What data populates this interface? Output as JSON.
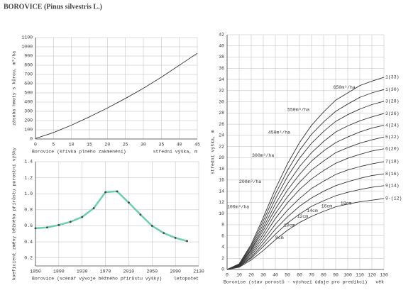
{
  "title": "BOROVICE (Pinus silvestris L.)",
  "chart_data": [
    {
      "type": "line",
      "ylabel": "zásoba hmoty s kůrou, m³/ha",
      "xlabel_left": "Borovice  (křivka plného zakmenění)",
      "xlabel": "střední výška, m",
      "x": [
        0,
        5,
        10,
        15,
        20,
        25,
        30,
        35,
        40,
        45
      ],
      "series": [
        {
          "color": "#333333",
          "values": [
            5,
            70,
            150,
            240,
            335,
            440,
            550,
            670,
            800,
            930
          ]
        }
      ],
      "xlim": [
        0,
        45
      ],
      "xticks": [
        0,
        5,
        10,
        15,
        20,
        25,
        30,
        35,
        40,
        45
      ],
      "ylim": [
        0,
        1100
      ],
      "yticks": [
        0,
        100,
        200,
        300,
        400,
        500,
        600,
        700,
        800,
        900,
        1000,
        1100
      ],
      "grid": true
    },
    {
      "type": "line",
      "ylabel": "koeficient změny běžného přírůstu porostní výšky",
      "xlabel_left": "Borovice  (scénář vývoje běžného přírůstu výšky)",
      "xlabel": "letopočet",
      "x": [
        1850,
        1870,
        1890,
        1910,
        1930,
        1950,
        1970,
        1990,
        2010,
        2030,
        2050,
        2070,
        2090,
        2110
      ],
      "series": [
        {
          "color": "#3bbf9a",
          "values": [
            0.57,
            0.58,
            0.61,
            0.65,
            0.71,
            0.82,
            1.02,
            1.03,
            0.89,
            0.74,
            0.6,
            0.51,
            0.45,
            0.41
          ]
        }
      ],
      "markers": true,
      "xlim": [
        1850,
        2130
      ],
      "xticks": [
        1850,
        1890,
        1930,
        1970,
        2010,
        2050,
        2090,
        2130
      ],
      "ylim": [
        0.1,
        1.4
      ],
      "yticks": [
        0.2,
        0.4,
        0.6,
        0.8,
        {
          "value": 1,
          "label": "1.0"
        },
        1.2,
        1.4
      ],
      "grid": true
    },
    {
      "type": "line",
      "ylabel": "střední výška, m",
      "xlabel_left": "Borovice  (stav porostů - výchozí údaje pro predikci)",
      "xlabel": "věk",
      "x": [
        0,
        10,
        20,
        30,
        40,
        50,
        60,
        70,
        80,
        90,
        100,
        110,
        120,
        130
      ],
      "series": [
        {
          "name": "1(33)",
          "color": "#333333",
          "values": [
            0,
            1.0,
            4.5,
            9.3,
            14.4,
            18.9,
            22.7,
            25.8,
            28.2,
            30.3,
            31.6,
            32.9,
            33.7,
            34.4
          ]
        },
        {
          "name": "1(30)",
          "color": "#333333",
          "values": [
            0,
            1.0,
            4.2,
            8.7,
            13.5,
            17.7,
            21.3,
            24.2,
            26.4,
            28.3,
            29.6,
            30.8,
            31.6,
            32.2
          ]
        },
        {
          "name": "3(28)",
          "color": "#333333",
          "values": [
            0,
            0.9,
            3.9,
            8.1,
            12.6,
            16.6,
            19.9,
            22.6,
            24.7,
            26.5,
            27.7,
            28.7,
            29.5,
            30.1
          ]
        },
        {
          "name": "3(26)",
          "color": "#333333",
          "values": [
            0,
            0.8,
            3.6,
            7.5,
            11.7,
            15.3,
            18.4,
            20.9,
            22.9,
            24.6,
            25.7,
            26.6,
            27.3,
            27.9
          ]
        },
        {
          "name": "4(24)",
          "color": "#333333",
          "values": [
            0,
            0.8,
            3.4,
            7.0,
            10.8,
            14.2,
            17.0,
            19.4,
            21.2,
            22.7,
            23.7,
            24.6,
            25.3,
            25.8
          ]
        },
        {
          "name": "5(22)",
          "color": "#333333",
          "values": [
            0,
            0.7,
            3.1,
            6.4,
            10.0,
            13.0,
            15.6,
            17.8,
            19.4,
            20.9,
            21.8,
            22.6,
            23.2,
            23.7
          ]
        },
        {
          "name": "6(20)",
          "color": "#333333",
          "values": [
            0,
            0.6,
            2.8,
            5.8,
            9.1,
            11.9,
            14.3,
            16.2,
            17.7,
            19.0,
            19.9,
            20.6,
            21.2,
            21.6
          ]
        },
        {
          "name": "7(18)",
          "color": "#333333",
          "values": [
            0,
            0.6,
            2.5,
            5.2,
            8.1,
            10.6,
            12.7,
            14.5,
            15.8,
            17.0,
            17.8,
            18.4,
            18.9,
            19.3
          ]
        },
        {
          "name": "8(16)",
          "color": "#333333",
          "values": [
            0,
            0.5,
            2.2,
            4.6,
            7.2,
            9.4,
            11.3,
            12.8,
            14.0,
            15.0,
            15.7,
            16.3,
            16.8,
            17.1
          ]
        },
        {
          "name": "9(14)",
          "color": "#333333",
          "values": [
            0,
            0.5,
            2.0,
            4.1,
            6.3,
            8.3,
            9.9,
            11.3,
            12.3,
            13.2,
            13.8,
            14.3,
            14.7,
            15.0
          ]
        },
        {
          "name": "9-(12)",
          "color": "#333333",
          "values": [
            0,
            0.4,
            1.7,
            3.4,
            5.3,
            7.0,
            8.4,
            9.5,
            10.4,
            11.2,
            11.7,
            12.1,
            12.4,
            12.7
          ]
        }
      ],
      "annotations": [
        "650m³/ha",
        "550m³/ha",
        "450m³/ha",
        "300m³/ha",
        "200m³/ha",
        "100m³/ha",
        "18cm",
        "16cm",
        "14cm",
        "12cm",
        "10cm",
        "8cm"
      ],
      "xlim": [
        0,
        130
      ],
      "xticks": [
        0,
        10,
        20,
        30,
        40,
        50,
        60,
        70,
        80,
        90,
        100,
        110,
        120,
        130
      ],
      "ylim": [
        0,
        42
      ],
      "yticks": [
        0,
        2,
        4,
        6,
        8,
        10,
        12,
        14,
        16,
        18,
        20,
        22,
        24,
        26,
        28,
        30,
        32,
        34,
        36,
        38,
        40,
        42
      ],
      "grid": true
    }
  ]
}
